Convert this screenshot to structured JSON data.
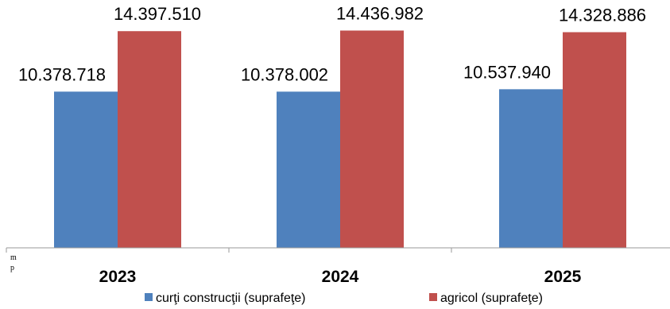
{
  "chart_data": {
    "type": "bar",
    "categories": [
      "2023",
      "2024",
      "2025"
    ],
    "series": [
      {
        "name": "curţi construcţii (suprafeţe)",
        "color": "#4f81bd",
        "values": [
          10378718,
          10378002,
          10537940
        ],
        "labels": [
          "10.378.718",
          "10.378.002",
          "10.537.940"
        ]
      },
      {
        "name": "agricol (suprafeţe)",
        "color": "#c0504d",
        "values": [
          14397510,
          14436982,
          14328886
        ],
        "labels": [
          "14.397.510",
          "14.436.982",
          "14.328.886"
        ]
      }
    ],
    "unit_label": [
      "m",
      "p"
    ],
    "ylim": [
      0,
      15000000
    ],
    "grid": false,
    "legend_position": "bottom",
    "axis_color": "#9a9a9a"
  }
}
